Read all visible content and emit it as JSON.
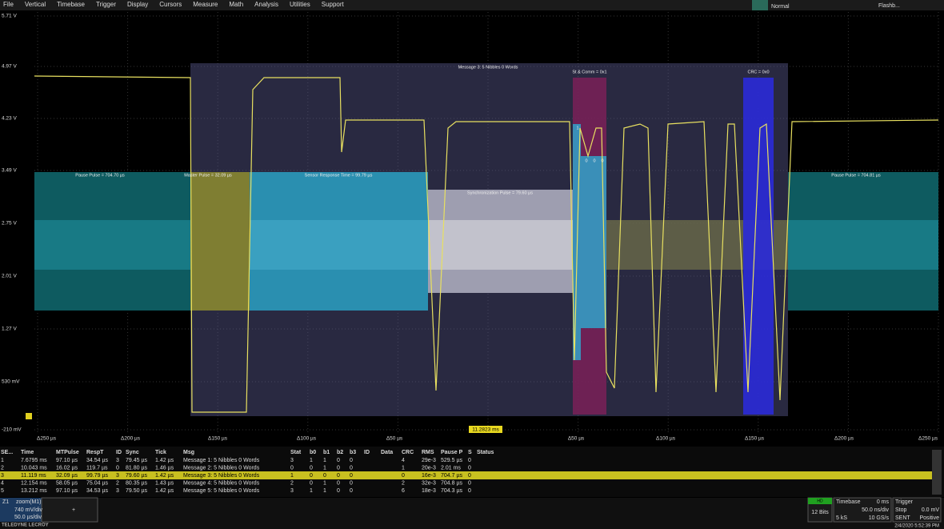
{
  "menu": [
    "File",
    "Vertical",
    "Timebase",
    "Trigger",
    "Display",
    "Cursors",
    "Measure",
    "Math",
    "Analysis",
    "Utilities",
    "Support"
  ],
  "status": {
    "mode": "Normal",
    "tool": "Flashb..."
  },
  "y_labels": [
    "5.71 V",
    "4.97 V",
    "4.23 V",
    "3.49 V",
    "2.75 V",
    "2.01 V",
    "1.27 V",
    "530 mV",
    "-210 mV"
  ],
  "x_labels": [
    "Δ250 µs",
    "Δ200 µs",
    "Δ150 µs",
    "Δ100 µs",
    "Δ50 µs",
    "Δ50 µs",
    "Δ100 µs",
    "Δ150 µs",
    "Δ200 µs",
    "Δ250 µs"
  ],
  "center_time": "11.2823 ms",
  "annotations": [
    "Message 3: 5 Nibbles 0 Words",
    "St & Comm = 0x1",
    "CRC = 0x0",
    "Pause Pulse = 704.70 µs",
    "Master Pulse = 32.09 µs",
    "Sensor Response Time = 99.79 µs",
    "Synchronization Pulse = 79.60 µs",
    "Pause Pulse = 704.81 µs",
    "1",
    "0",
    "0",
    "0"
  ],
  "table": {
    "header": [
      "SE...",
      "Time",
      "MTPulse",
      "RespT",
      "ID",
      "Sync",
      "Tick",
      "Msg",
      "Stat",
      "b0",
      "b1",
      "b2",
      "b3",
      "ID",
      "Data",
      "CRC",
      "RMS",
      "Pause P",
      "S",
      "Status"
    ],
    "rows": [
      [
        "1",
        "7.6795 ms",
        "97.10 µs",
        "34.54 µs",
        "3",
        "79.45 µs",
        "1.42 µs",
        "Message 1: 5 Nibbles 0 Words",
        "3",
        "1",
        "1",
        "0",
        "0",
        null,
        null,
        "4",
        "29e-3",
        "529.5 µs",
        "0",
        null
      ],
      [
        "2",
        "10.043 ms",
        "16.02 µs",
        "119.7 µs",
        "0",
        "81.80 µs",
        "1.46 µs",
        "Message 2: 5 Nibbles 0 Words",
        "0",
        "0",
        "1",
        "0",
        "0",
        null,
        null,
        "1",
        "20e-3",
        "2.01 ms",
        "0",
        null
      ],
      [
        "3",
        "11.119 ms",
        "32.09 µs",
        "99.79 µs",
        "3",
        "79.60 µs",
        "1.42 µs",
        "Message 3: 5 Nibbles 0 Words",
        "1",
        "0",
        "0",
        "0",
        "0",
        null,
        null,
        "0",
        "16e-3",
        "704.7 µs",
        "0",
        null
      ],
      [
        "4",
        "12.154 ms",
        "58.05 µs",
        "75.04 µs",
        "2",
        "80.35 µs",
        "1.43 µs",
        "Message 4: 5 Nibbles 0 Words",
        "2",
        "0",
        "1",
        "0",
        "0",
        null,
        null,
        "2",
        "32e-3",
        "704.8 µs",
        "0",
        null
      ],
      [
        "5",
        "13.212 ms",
        "97.10 µs",
        "34.53 µs",
        "3",
        "79.50 µs",
        "1.42 µs",
        "Message 5: 5 Nibbles 0 Words",
        "3",
        "1",
        "1",
        "0",
        "0",
        null,
        null,
        "6",
        "18e-3",
        "704.3 µs",
        "0",
        null
      ]
    ]
  },
  "zoom": {
    "name": "Z1",
    "source": "zoom(M1)",
    "vdiv": "740 mV/div",
    "tdiv": "50.0 µs/div",
    "add": "+"
  },
  "acq": {
    "hd": "HD",
    "bits": "12 Bits",
    "timebase": "Timebase",
    "delay": "0 ms",
    "trigger": "Trigger",
    "samples": "5 kS",
    "tdiv": "50.0 ns/div",
    "rate": "10 GS/s",
    "state": "Stop",
    "source": "SENT",
    "level": "0.0 mV",
    "slope": "Positive"
  },
  "footer": {
    "logo": "TELEDYNE LECROY",
    "date": "2/4/2020 5:52:39 PM"
  }
}
